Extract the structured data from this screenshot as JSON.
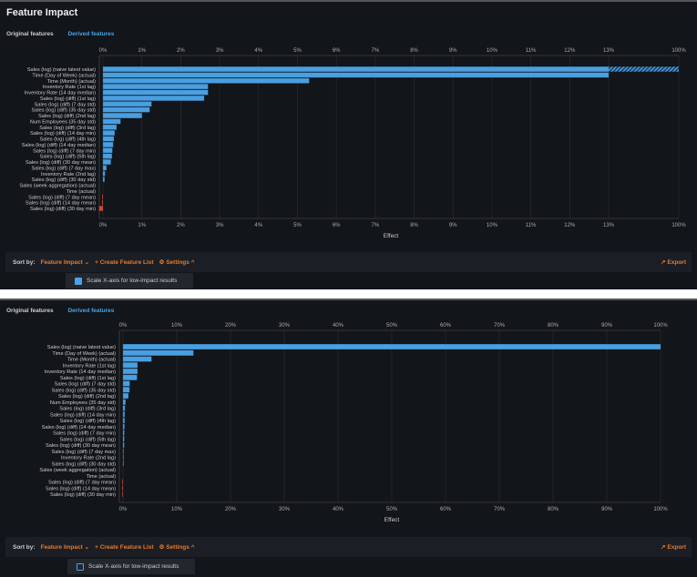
{
  "title": "Feature Impact",
  "tabs": [
    {
      "label": "Original features",
      "active": false
    },
    {
      "label": "Derived features",
      "active": true
    }
  ],
  "footer": {
    "sort_label": "Sort by:",
    "sort_value": "Feature Impact",
    "create_list": "Create Feature List",
    "settings": "Settings",
    "export": "Export",
    "scale_option": "Scale X-axis for low-impact results"
  },
  "colors": {
    "bar": "#4a9fe0",
    "negative": "#c8493a",
    "accent": "#e8792a",
    "tab_active": "#4aa3e8"
  },
  "chart_data": [
    {
      "type": "bar",
      "orientation": "horizontal",
      "xlabel": "Effect",
      "scaled_x_axis": true,
      "scale_checked": true,
      "ticks": [
        "0%",
        "1%",
        "2%",
        "3%",
        "4%",
        "5%",
        "6%",
        "7%",
        "8%",
        "9%",
        "10%",
        "11%",
        "12%",
        "13%",
        "100%"
      ],
      "xlim": [
        0,
        100
      ],
      "grid": true
    },
    {
      "type": "bar",
      "orientation": "horizontal",
      "xlabel": "Effect",
      "scaled_x_axis": false,
      "scale_checked": false,
      "ticks": [
        "0%",
        "10%",
        "20%",
        "30%",
        "40%",
        "50%",
        "60%",
        "70%",
        "80%",
        "90%",
        "100%"
      ],
      "xlim": [
        0,
        100
      ],
      "grid": true
    }
  ],
  "features": [
    "Sales (log) (naive latest value)",
    "Time (Day of Week) (actual)",
    "Time (Month) (actual)",
    "Inventory Rate (1st lag)",
    "Inventory Rate (14 day median)",
    "Sales (log) (diff) (1st lag)",
    "Sales (log) (diff) (7 day std)",
    "Sales (log) (diff) (35 day std)",
    "Sales (log) (diff) (2nd lag)",
    "Num Employees (35 day std)",
    "Sales (log) (diff) (3rd lag)",
    "Sales (log) (diff) (14 day min)",
    "Sales (log) (diff) (4th lag)",
    "Sales (log) (diff) (14 day median)",
    "Sales (log) (diff) (7 day min)",
    "Sales (log) (diff) (5th lag)",
    "Sales (log) (diff) (30 day mean)",
    "Sales (log) (diff) (7 day max)",
    "Inventory Rate (2nd lag)",
    "Sales (log) (diff) (30 day std)",
    "Sales (week aggregation) (actual)",
    "Time (actual)",
    "Sales (log) (diff) (7 day mean)",
    "Sales (log) (diff) (14 day mean)",
    "Sales (log) (diff) (30 day min)"
  ],
  "values": [
    100,
    13.1,
    5.3,
    2.7,
    2.7,
    2.6,
    1.25,
    1.2,
    1.0,
    0.45,
    0.35,
    0.3,
    0.28,
    0.26,
    0.24,
    0.23,
    0.2,
    0.09,
    0.05,
    0.04,
    0,
    0,
    -0.01,
    -0.02,
    -0.1
  ]
}
